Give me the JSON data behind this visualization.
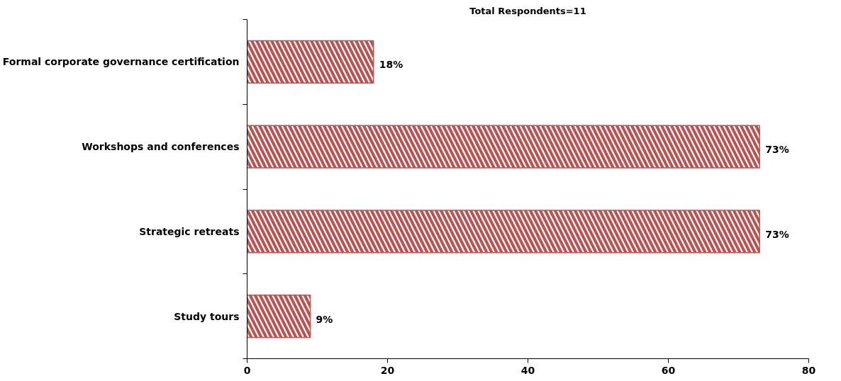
{
  "chart_data": {
    "type": "bar",
    "orientation": "horizontal",
    "title": "Total Respondents=11",
    "categories": [
      "Formal corporate governance certification",
      "Workshops and conferences",
      "Strategic retreats",
      "Study tours"
    ],
    "values": [
      18,
      73,
      73,
      9
    ],
    "color": "#c0504d",
    "value_labels": [
      "18%",
      "73%",
      "73%",
      "9%"
    ],
    "xlim": [
      0,
      80
    ],
    "xticks": [
      0,
      20,
      40,
      60,
      80
    ],
    "grid": false
  }
}
